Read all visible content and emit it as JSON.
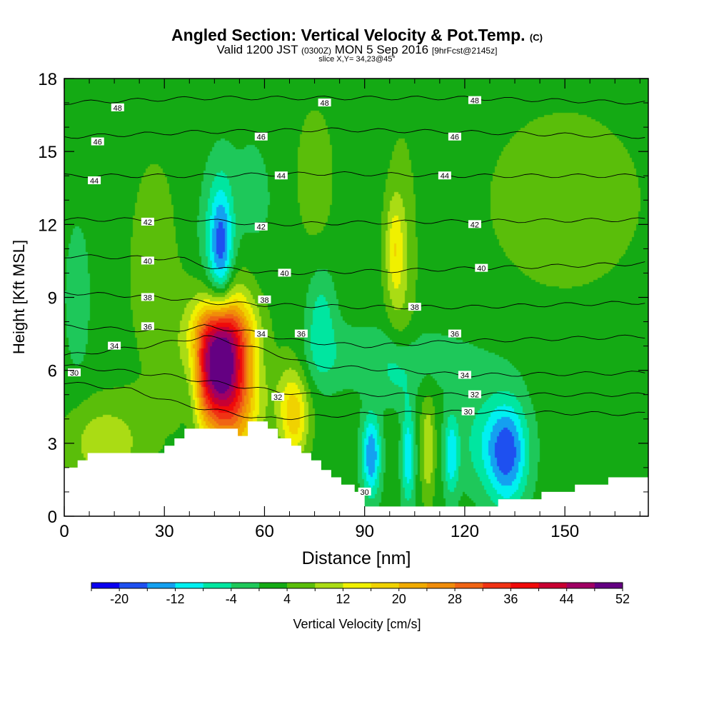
{
  "title": {
    "main": "Angled Section: Vertical Velocity & Pot.Temp.",
    "unit": "(C)",
    "valid_prefix": "Valid 1200 JST",
    "valid_utc": "(0300Z)",
    "valid_date": "MON 5 Sep 2016",
    "fcst": "[9hrFcst@2145z]",
    "slice": "slice X,Y= 34,23@45°"
  },
  "chart_data": {
    "type": "heatmap",
    "xlabel": "Distance [nm]",
    "ylabel": "Height [Kft MSL]",
    "xlim": [
      0,
      175
    ],
    "ylim": [
      0,
      18
    ],
    "x_ticks": [
      "0",
      "30",
      "60",
      "90",
      "120",
      "150"
    ],
    "x_tick_values": [
      0,
      30,
      60,
      90,
      120,
      150
    ],
    "y_ticks": [
      "0",
      "3",
      "6",
      "9",
      "12",
      "15",
      "18"
    ],
    "y_tick_values": [
      0,
      3,
      6,
      9,
      12,
      15,
      18
    ],
    "colorbar": {
      "label": "Vertical Velocity [cm/s]",
      "levels_start": -24,
      "level_step": 4,
      "colors": [
        "#0a00f0",
        "#1e50f0",
        "#14a0f0",
        "#00f0f0",
        "#00e6a0",
        "#1ec85a",
        "#14aa14",
        "#5abe0a",
        "#aadc14",
        "#f0f000",
        "#f0d200",
        "#f0aa00",
        "#f08c0a",
        "#f06414",
        "#f03214",
        "#f00a0a",
        "#c80032",
        "#a00064",
        "#640082"
      ],
      "tick_labels": [
        "-20",
        "-12",
        "-4",
        "4",
        "12",
        "20",
        "28",
        "36",
        "44",
        "52"
      ],
      "tick_values": [
        -20,
        -12,
        -4,
        4,
        12,
        20,
        28,
        36,
        44,
        52
      ]
    },
    "terrain_kft": [
      [
        0,
        2.0
      ],
      [
        4,
        2.0
      ],
      [
        4,
        2.3
      ],
      [
        7,
        2.3
      ],
      [
        7,
        2.6
      ],
      [
        30,
        2.6
      ],
      [
        30,
        2.9
      ],
      [
        33,
        2.9
      ],
      [
        33,
        3.2
      ],
      [
        36,
        3.2
      ],
      [
        36,
        3.6
      ],
      [
        52,
        3.6
      ],
      [
        52,
        3.3
      ],
      [
        55,
        3.3
      ],
      [
        55,
        3.9
      ],
      [
        61,
        3.9
      ],
      [
        61,
        3.6
      ],
      [
        64,
        3.6
      ],
      [
        64,
        3.2
      ],
      [
        68,
        3.2
      ],
      [
        68,
        2.9
      ],
      [
        71,
        2.9
      ],
      [
        71,
        2.6
      ],
      [
        74,
        2.6
      ],
      [
        74,
        2.3
      ],
      [
        77,
        2.3
      ],
      [
        77,
        1.9
      ],
      [
        80,
        1.9
      ],
      [
        80,
        1.6
      ],
      [
        83,
        1.6
      ],
      [
        83,
        1.3
      ],
      [
        87,
        1.3
      ],
      [
        87,
        1.0
      ],
      [
        90,
        1.0
      ],
      [
        90,
        0.4
      ],
      [
        130,
        0.4
      ],
      [
        130,
        0.7
      ],
      [
        143,
        0.7
      ],
      [
        143,
        1.0
      ],
      [
        153,
        1.0
      ],
      [
        153,
        1.3
      ],
      [
        163,
        1.3
      ],
      [
        163,
        1.6
      ],
      [
        175,
        1.6
      ],
      [
        175,
        0
      ],
      [
        0,
        0
      ]
    ],
    "velocity_features": [
      {
        "x": 45,
        "y": 6.2,
        "sx": 5.5,
        "sy": 1.8,
        "value": 46
      },
      {
        "x": 52,
        "y": 5.5,
        "sx": 5,
        "sy": 2.5,
        "value": 20
      },
      {
        "x": 48,
        "y": 7.6,
        "sx": 6,
        "sy": 0.8,
        "value": 8
      },
      {
        "x": 47,
        "y": 11,
        "sx": 2.5,
        "sy": 1.8,
        "value": -18
      },
      {
        "x": 44,
        "y": 10,
        "sx": 4,
        "sy": 3,
        "value": -5
      },
      {
        "x": 38,
        "y": 5.5,
        "sx": 2.5,
        "sy": 1.5,
        "value": -10
      },
      {
        "x": 4,
        "y": 9,
        "sx": 2.5,
        "sy": 2,
        "value": -6
      },
      {
        "x": 12,
        "y": 3,
        "sx": 8,
        "sy": 1.2,
        "value": 9
      },
      {
        "x": 69,
        "y": 4,
        "sx": 3,
        "sy": 1.2,
        "value": 14
      },
      {
        "x": 67,
        "y": 5.5,
        "sx": 4,
        "sy": 1.5,
        "value": 6
      },
      {
        "x": 77,
        "y": 8,
        "sx": 3,
        "sy": 1.5,
        "value": -8
      },
      {
        "x": 92,
        "y": 2.5,
        "sx": 2,
        "sy": 1.2,
        "value": -18
      },
      {
        "x": 103,
        "y": 2.5,
        "sx": 1.5,
        "sy": 1.5,
        "value": -14
      },
      {
        "x": 109,
        "y": 2.8,
        "sx": 1.5,
        "sy": 1.5,
        "value": 10
      },
      {
        "x": 116,
        "y": 2.5,
        "sx": 1.5,
        "sy": 1.2,
        "value": -12
      },
      {
        "x": 133,
        "y": 2.5,
        "sx": 4,
        "sy": 1.5,
        "value": -15
      },
      {
        "x": 128,
        "y": 3,
        "sx": 7,
        "sy": 1.5,
        "value": -9
      },
      {
        "x": 99,
        "y": 11,
        "sx": 2,
        "sy": 1.5,
        "value": 10
      },
      {
        "x": 101,
        "y": 9.5,
        "sx": 3,
        "sy": 4,
        "value": 5
      },
      {
        "x": 75,
        "y": 14,
        "sx": 4,
        "sy": 2,
        "value": 5
      },
      {
        "x": 100,
        "y": 5.5,
        "sx": 3,
        "sy": 1,
        "value": -6
      },
      {
        "x": 95,
        "y": 6.5,
        "sx": 25,
        "sy": 1,
        "value": -5
      },
      {
        "x": 27,
        "y": 10,
        "sx": 8,
        "sy": 5,
        "value": 3
      },
      {
        "x": 150,
        "y": 13,
        "sx": 25,
        "sy": 4,
        "value": 3
      },
      {
        "x": 56,
        "y": 13,
        "sx": 6,
        "sy": 2.5,
        "value": -3
      }
    ],
    "theta_contours": [
      {
        "label": "48",
        "heights": [
          [
            0,
            17.0
          ],
          [
            40,
            17.2
          ],
          [
            80,
            17.2
          ],
          [
            120,
            17.2
          ],
          [
            175,
            17.0
          ]
        ],
        "labels_at": [
          [
            16,
            16.8
          ],
          [
            78,
            17.0
          ],
          [
            123,
            17.1
          ]
        ]
      },
      {
        "label": "46",
        "heights": [
          [
            0,
            15.6
          ],
          [
            40,
            15.8
          ],
          [
            80,
            15.9
          ],
          [
            120,
            15.8
          ],
          [
            175,
            15.6
          ]
        ],
        "labels_at": [
          [
            10,
            15.4
          ],
          [
            59,
            15.6
          ],
          [
            117,
            15.6
          ]
        ]
      },
      {
        "label": "44",
        "heights": [
          [
            0,
            14.0
          ],
          [
            40,
            14.0
          ],
          [
            80,
            14.1
          ],
          [
            120,
            14.0
          ],
          [
            175,
            14.0
          ]
        ],
        "labels_at": [
          [
            9,
            13.8
          ],
          [
            65,
            14.0
          ],
          [
            114,
            14.0
          ]
        ]
      },
      {
        "label": "42",
        "heights": [
          [
            0,
            12.2
          ],
          [
            40,
            12.2
          ],
          [
            60,
            12.0
          ],
          [
            100,
            12.1
          ],
          [
            175,
            12.2
          ]
        ],
        "labels_at": [
          [
            25,
            12.1
          ],
          [
            59,
            11.9
          ],
          [
            123,
            12.0
          ]
        ]
      },
      {
        "label": "40",
        "heights": [
          [
            0,
            10.7
          ],
          [
            35,
            10.6
          ],
          [
            45,
            10.2
          ],
          [
            65,
            10.0
          ],
          [
            100,
            10.1
          ],
          [
            175,
            10.4
          ]
        ],
        "labels_at": [
          [
            25,
            10.5
          ],
          [
            66,
            10.0
          ],
          [
            125,
            10.2
          ]
        ]
      },
      {
        "label": "38",
        "heights": [
          [
            0,
            9.2
          ],
          [
            30,
            9.0
          ],
          [
            42,
            8.8
          ],
          [
            60,
            8.7
          ],
          [
            90,
            8.6
          ],
          [
            120,
            8.6
          ],
          [
            175,
            8.8
          ]
        ],
        "labels_at": [
          [
            25,
            9.0
          ],
          [
            60,
            8.9
          ],
          [
            105,
            8.6
          ]
        ]
      },
      {
        "label": "36",
        "heights": [
          [
            0,
            7.8
          ],
          [
            30,
            7.6
          ],
          [
            42,
            7.8
          ],
          [
            55,
            7.6
          ],
          [
            70,
            7.2
          ],
          [
            90,
            7.0
          ],
          [
            120,
            7.2
          ],
          [
            175,
            7.4
          ]
        ],
        "labels_at": [
          [
            25,
            7.8
          ],
          [
            71,
            7.5
          ],
          [
            117,
            7.5
          ]
        ]
      },
      {
        "label": "34",
        "heights": [
          [
            0,
            6.6
          ],
          [
            25,
            7.0
          ],
          [
            42,
            7.4
          ],
          [
            55,
            7.0
          ],
          [
            75,
            6.2
          ],
          [
            100,
            6.0
          ],
          [
            120,
            5.8
          ],
          [
            175,
            5.9
          ]
        ],
        "labels_at": [
          [
            15,
            7.0
          ],
          [
            59,
            7.5
          ],
          [
            120,
            5.8
          ]
        ]
      },
      {
        "label": "32",
        "heights": [
          [
            0,
            6.2
          ],
          [
            30,
            5.8
          ],
          [
            60,
            5.2
          ],
          [
            72,
            5.0
          ],
          [
            100,
            5.0
          ],
          [
            120,
            5.0
          ],
          [
            175,
            5.0
          ]
        ],
        "labels_at": [
          [
            64,
            4.9
          ],
          [
            123,
            5.0
          ]
        ]
      },
      {
        "label": "30",
        "heights": [
          [
            0,
            5.5
          ],
          [
            20,
            5.2
          ],
          [
            35,
            4.6
          ],
          [
            60,
            4.0
          ],
          [
            90,
            4.2
          ],
          [
            120,
            4.3
          ],
          [
            175,
            4.2
          ]
        ],
        "labels_at": [
          [
            3,
            5.9
          ],
          [
            121,
            4.3
          ],
          [
            90,
            1.0
          ]
        ]
      }
    ]
  }
}
